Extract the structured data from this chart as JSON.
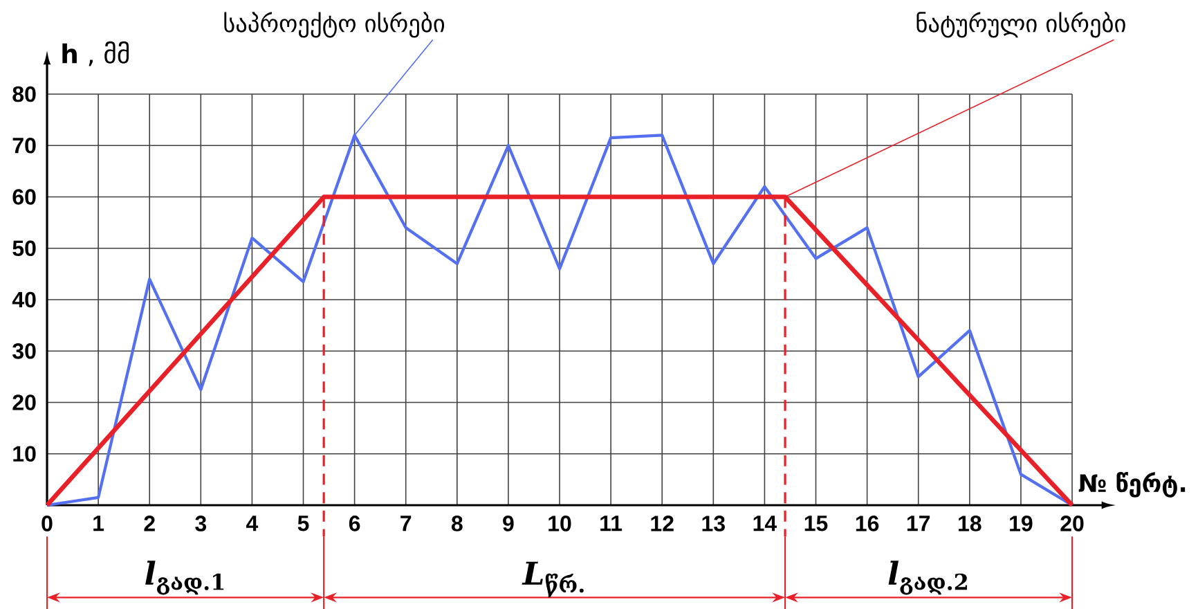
{
  "chart_data": {
    "type": "line",
    "xlabel": "№ წერტ.",
    "ylabel": "**h** , მმ",
    "xlim": [
      0,
      20
    ],
    "ylim": [
      0,
      80
    ],
    "xticks": [
      0,
      1,
      2,
      3,
      4,
      5,
      6,
      7,
      8,
      9,
      10,
      11,
      12,
      13,
      14,
      15,
      16,
      17,
      18,
      19,
      20
    ],
    "yticks": [
      10,
      20,
      30,
      40,
      50,
      60,
      70,
      80
    ],
    "grid": true,
    "legend": false,
    "series": [
      {
        "name": "საპროექტო ისრები",
        "color": "#5470f0",
        "x": [
          0,
          1,
          2,
          3,
          4,
          5,
          6,
          7,
          8,
          9,
          10,
          11,
          12,
          13,
          14,
          15,
          16,
          17,
          18,
          19,
          20
        ],
        "values": [
          0,
          1.5,
          44,
          22.5,
          52,
          43.5,
          72,
          54,
          47,
          70,
          46,
          71.5,
          72,
          47,
          62,
          48,
          54,
          25,
          34,
          6,
          0
        ]
      },
      {
        "name": "ნატურული ისრები",
        "color": "#e82028",
        "x": [
          0,
          5.4,
          14.4,
          20
        ],
        "values": [
          0,
          60,
          60,
          0
        ]
      }
    ],
    "ref_lines": [
      {
        "axis": "x",
        "value": 5.4,
        "color": "#e82028",
        "line_style": "dashed"
      },
      {
        "axis": "x",
        "value": 14.4,
        "color": "#e82028",
        "line_style": "dashed"
      }
    ],
    "annotations": [
      "*l*$_{გად.1}$",
      "*L*$_{წრ.}$",
      "*l*$_{გად.2}$"
    ]
  }
}
